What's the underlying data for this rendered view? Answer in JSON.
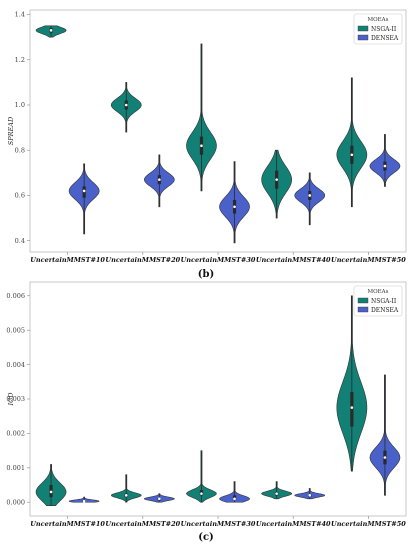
{
  "chart_data": [
    {
      "type": "violin",
      "ylabel": "SPREAD",
      "ylim": [
        0.35,
        1.42
      ],
      "yticks": [
        "0.4",
        "0.6",
        "0.8",
        "1.0",
        "1.2",
        "1.4"
      ],
      "categories": [
        "UncertainMMST#10",
        "UncertainMMST#20",
        "UncertainMMST#30",
        "UncertainMMST#40",
        "UncertainMMST#50"
      ],
      "legend": {
        "title": "MOEAs",
        "position": "top-right"
      },
      "series": [
        {
          "name": "NSGA-II",
          "color": "#128074",
          "median": [
            1.33,
            1.0,
            0.82,
            0.67,
            0.78
          ],
          "q1": [
            1.32,
            0.98,
            0.78,
            0.63,
            0.74
          ],
          "q3": [
            1.34,
            1.02,
            0.86,
            0.71,
            0.82
          ],
          "min": [
            1.3,
            0.88,
            0.62,
            0.5,
            0.55
          ],
          "max": [
            1.35,
            1.1,
            1.27,
            0.8,
            1.12
          ]
        },
        {
          "name": "DENSEA",
          "color": "#4a61c9",
          "median": [
            0.62,
            0.67,
            0.55,
            0.6,
            0.73
          ],
          "q1": [
            0.59,
            0.65,
            0.52,
            0.58,
            0.71
          ],
          "q3": [
            0.64,
            0.69,
            0.58,
            0.62,
            0.75
          ],
          "min": [
            0.43,
            0.55,
            0.39,
            0.47,
            0.64
          ],
          "max": [
            0.74,
            0.78,
            0.75,
            0.7,
            0.87
          ]
        }
      ],
      "caption": "(b)"
    },
    {
      "type": "violin",
      "ylabel": "IGD",
      "ylim": [
        -0.0004,
        0.0064
      ],
      "yticks": [
        "0.000",
        "0.001",
        "0.002",
        "0.003",
        "0.004",
        "0.005",
        "0.006"
      ],
      "categories": [
        "UncertainMMST#10",
        "UncertainMMST#20",
        "UncertainMMST#30",
        "UncertainMMST#40",
        "UncertainMMST#50"
      ],
      "legend": {
        "title": "MOEAs",
        "position": "top-right"
      },
      "series": [
        {
          "name": "NSGA-II",
          "color": "#128074",
          "median": [
            0.0003,
            0.0002,
            0.00025,
            0.00025,
            0.00275
          ],
          "q1": [
            0.00015,
            0.00015,
            0.0002,
            0.0002,
            0.0022
          ],
          "q3": [
            0.0005,
            0.00025,
            0.00035,
            0.0003,
            0.0032
          ],
          "min": [
            -0.0001,
            0.0,
            0.0,
            0.0001,
            0.0009
          ],
          "max": [
            0.0011,
            0.0008,
            0.0015,
            0.0006,
            0.006
          ]
        },
        {
          "name": "DENSEA",
          "color": "#4a61c9",
          "median": [
            3e-05,
            0.0001,
            0.0001,
            0.0002,
            0.0013
          ],
          "q1": [
            1e-05,
            5e-05,
            8e-05,
            0.00015,
            0.0011
          ],
          "q3": [
            6e-05,
            0.00012,
            0.0002,
            0.00022,
            0.0015
          ],
          "min": [
            0.0,
            0.0,
            0.0,
            0.0001,
            0.0002
          ],
          "max": [
            0.00015,
            0.00025,
            0.0006,
            0.0004,
            0.0037
          ]
        }
      ],
      "caption": "(c)"
    }
  ]
}
